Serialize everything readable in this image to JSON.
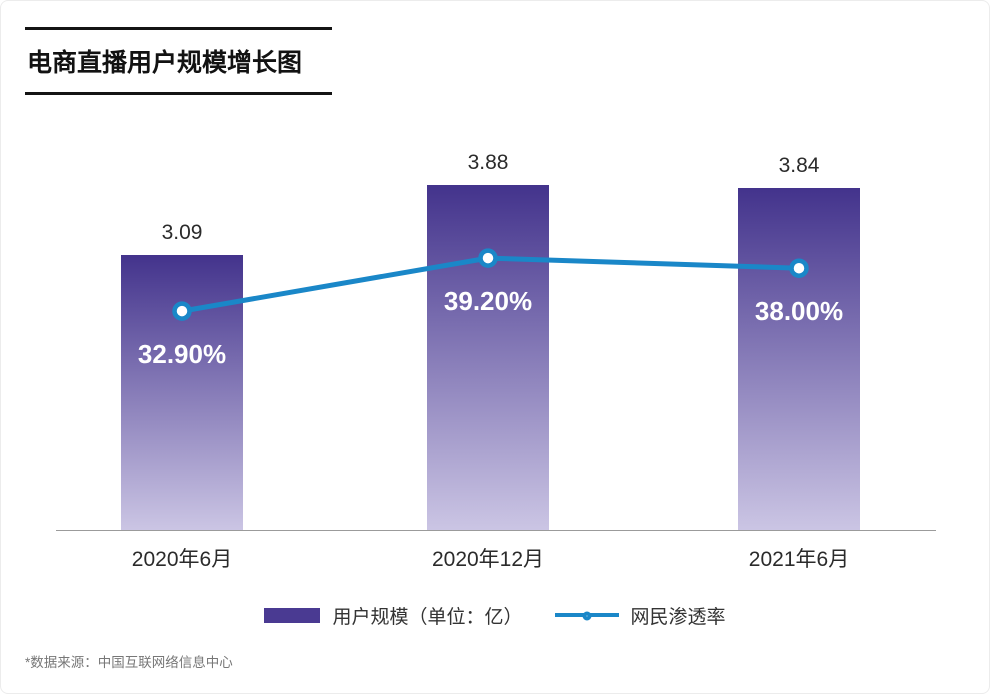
{
  "source_note": "*数据来源：中国互联网络信息中心",
  "colors": {
    "bar_gradient_top": "#43338c",
    "bar_gradient_bottom": "#cbc5e4",
    "legend_bar_swatch": "#4a3a92",
    "line": "#1a87c8",
    "axis": "#9b9b9b",
    "percent_label_text": "#ffffff"
  },
  "chart_data": {
    "type": "bar",
    "title": "电商直播用户规模增长图",
    "categories": [
      "2020年6月",
      "2020年12月",
      "2021年6月"
    ],
    "series": [
      {
        "name": "用户规模（单位：亿）",
        "type": "bar",
        "values": [
          3.09,
          3.88,
          3.84
        ],
        "labels": [
          "3.09",
          "3.88",
          "3.84"
        ]
      },
      {
        "name": "网民渗透率",
        "type": "line",
        "values": [
          32.9,
          39.2,
          38.0
        ],
        "labels": [
          "32.90%",
          "39.20%",
          "38.00%"
        ]
      }
    ],
    "bar_axis_range": [
      0,
      4.7
    ],
    "grid": false,
    "legend_position": "bottom"
  }
}
